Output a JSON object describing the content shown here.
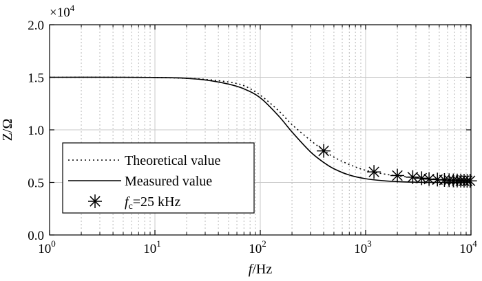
{
  "chart_data": {
    "type": "line",
    "x_scale": "log",
    "xlim": [
      1,
      10000
    ],
    "ylim": [
      0,
      20000
    ],
    "grid": true,
    "ylabel": "Z/Ω",
    "xlabel_italic": "f",
    "xlabel_rest": "/Hz",
    "exponent_label": "×10",
    "exponent_sup": "4",
    "y_ticks": [
      {
        "value": 0,
        "label": "0.0"
      },
      {
        "value": 5000,
        "label": "0.5"
      },
      {
        "value": 10000,
        "label": "1.0"
      },
      {
        "value": 15000,
        "label": "1.5"
      },
      {
        "value": 20000,
        "label": "2.0"
      }
    ],
    "x_ticks": [
      {
        "value": 1,
        "base": "10",
        "exp": "0"
      },
      {
        "value": 10,
        "base": "10",
        "exp": "1"
      },
      {
        "value": 100,
        "base": "10",
        "exp": "2"
      },
      {
        "value": 1000,
        "base": "10",
        "exp": "3"
      },
      {
        "value": 10000,
        "base": "10",
        "exp": "4"
      }
    ],
    "series": [
      {
        "name": "Theoretical value",
        "style": "dotted",
        "x": [
          1,
          5,
          10,
          20,
          30,
          50,
          70,
          100,
          150,
          200,
          300,
          400,
          500,
          700,
          1000,
          1500,
          2000,
          3000,
          5000,
          10000
        ],
        "y": [
          15000,
          15000,
          14980,
          14900,
          14800,
          14550,
          14200,
          13300,
          11800,
          10500,
          9000,
          8050,
          7400,
          6700,
          6150,
          5800,
          5620,
          5450,
          5300,
          5200
        ]
      },
      {
        "name": "Measured value",
        "style": "solid",
        "x": [
          1,
          5,
          10,
          15,
          20,
          30,
          50,
          70,
          100,
          150,
          200,
          300,
          400,
          500,
          700,
          1000,
          1500,
          2000,
          3000,
          5000,
          10000
        ],
        "y": [
          15000,
          15000,
          14980,
          14950,
          14900,
          14750,
          14350,
          13900,
          13050,
          11300,
          9800,
          7900,
          6900,
          6300,
          5700,
          5350,
          5150,
          5080,
          5020,
          5000,
          5000
        ]
      },
      {
        "name": "f_c=25 kHz",
        "style": "marker",
        "x": [
          400,
          1200,
          2000,
          2800,
          3400,
          4000,
          4800,
          5600,
          6200,
          6800,
          7400,
          8000,
          8600,
          9200,
          9800
        ],
        "y": [
          8000,
          6000,
          5650,
          5500,
          5400,
          5320,
          5270,
          5230,
          5210,
          5190,
          5180,
          5170,
          5160,
          5150,
          5150
        ]
      }
    ],
    "legend": {
      "placement": "lower-left",
      "entries": [
        {
          "text": "Theoretical value"
        },
        {
          "text": "Measured value"
        },
        {
          "italic": "f",
          "sub": "c",
          "rest": "=25 kHz"
        }
      ]
    }
  }
}
